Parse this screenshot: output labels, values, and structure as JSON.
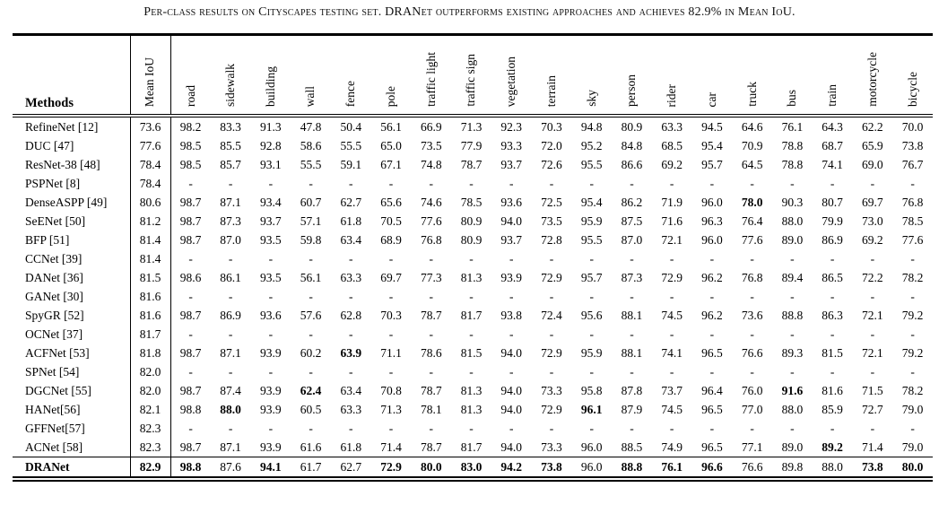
{
  "title": "Per-class results on Cityscapes testing set. DRANet outperforms existing approaches and achieves 82.9% in Mean IoU.",
  "colors": {
    "text": "#000000",
    "background": "#ffffff",
    "rule": "#000000"
  },
  "table": {
    "methods_header": "Methods",
    "columns": [
      "Mean IoU",
      "road",
      "sidewalk",
      "building",
      "wall",
      "fence",
      "pole",
      "traffic light",
      "traffic sign",
      "vegetation",
      "terrain",
      "sky",
      "person",
      "rider",
      "car",
      "truck",
      "bus",
      "train",
      "motorcycle",
      "bicycle"
    ],
    "rows": [
      {
        "method": "RefineNet [12]",
        "method_bold": false,
        "final": false,
        "bold": [],
        "values": [
          "73.6",
          "98.2",
          "83.3",
          "91.3",
          "47.8",
          "50.4",
          "56.1",
          "66.9",
          "71.3",
          "92.3",
          "70.3",
          "94.8",
          "80.9",
          "63.3",
          "94.5",
          "64.6",
          "76.1",
          "64.3",
          "62.2",
          "70.0"
        ]
      },
      {
        "method": "DUC [47]",
        "method_bold": false,
        "final": false,
        "bold": [],
        "values": [
          "77.6",
          "98.5",
          "85.5",
          "92.8",
          "58.6",
          "55.5",
          "65.0",
          "73.5",
          "77.9",
          "93.3",
          "72.0",
          "95.2",
          "84.8",
          "68.5",
          "95.4",
          "70.9",
          "78.8",
          "68.7",
          "65.9",
          "73.8"
        ]
      },
      {
        "method": "ResNet-38 [48]",
        "method_bold": false,
        "final": false,
        "bold": [],
        "values": [
          "78.4",
          "98.5",
          "85.7",
          "93.1",
          "55.5",
          "59.1",
          "67.1",
          "74.8",
          "78.7",
          "93.7",
          "72.6",
          "95.5",
          "86.6",
          "69.2",
          "95.7",
          "64.5",
          "78.8",
          "74.1",
          "69.0",
          "76.7"
        ]
      },
      {
        "method": "PSPNet [8]",
        "method_bold": false,
        "final": false,
        "bold": [],
        "values": [
          "78.4",
          "-",
          "-",
          "-",
          "-",
          "-",
          "-",
          "-",
          "-",
          "-",
          "-",
          "-",
          "-",
          "-",
          "-",
          "-",
          "-",
          "-",
          "-",
          "-"
        ]
      },
      {
        "method": "DenseASPP [49]",
        "method_bold": false,
        "final": false,
        "bold": [
          15
        ],
        "values": [
          "80.6",
          "98.7",
          "87.1",
          "93.4",
          "60.7",
          "62.7",
          "65.6",
          "74.6",
          "78.5",
          "93.6",
          "72.5",
          "95.4",
          "86.2",
          "71.9",
          "96.0",
          "78.0",
          "90.3",
          "80.7",
          "69.7",
          "76.8"
        ]
      },
      {
        "method": "SeENet [50]",
        "method_bold": false,
        "final": false,
        "bold": [],
        "values": [
          "81.2",
          "98.7",
          "87.3",
          "93.7",
          "57.1",
          "61.8",
          "70.5",
          "77.6",
          "80.9",
          "94.0",
          "73.5",
          "95.9",
          "87.5",
          "71.6",
          "96.3",
          "76.4",
          "88.0",
          "79.9",
          "73.0",
          "78.5"
        ]
      },
      {
        "method": "BFP [51]",
        "method_bold": false,
        "final": false,
        "bold": [],
        "values": [
          "81.4",
          "98.7",
          "87.0",
          "93.5",
          "59.8",
          "63.4",
          "68.9",
          "76.8",
          "80.9",
          "93.7",
          "72.8",
          "95.5",
          "87.0",
          "72.1",
          "96.0",
          "77.6",
          "89.0",
          "86.9",
          "69.2",
          "77.6"
        ]
      },
      {
        "method": "CCNet [39]",
        "method_bold": false,
        "final": false,
        "bold": [],
        "values": [
          "81.4",
          "-",
          "-",
          "-",
          "-",
          "-",
          "-",
          "-",
          "-",
          "-",
          "-",
          "-",
          "-",
          "-",
          "-",
          "-",
          "-",
          "-",
          "-",
          "-"
        ]
      },
      {
        "method": "DANet [36]",
        "method_bold": false,
        "final": false,
        "bold": [],
        "values": [
          "81.5",
          "98.6",
          "86.1",
          "93.5",
          "56.1",
          "63.3",
          "69.7",
          "77.3",
          "81.3",
          "93.9",
          "72.9",
          "95.7",
          "87.3",
          "72.9",
          "96.2",
          "76.8",
          "89.4",
          "86.5",
          "72.2",
          "78.2"
        ]
      },
      {
        "method": "GANet [30]",
        "method_bold": false,
        "final": false,
        "bold": [],
        "values": [
          "81.6",
          "-",
          "-",
          "-",
          "-",
          "-",
          "-",
          "-",
          "-",
          "-",
          "-",
          "-",
          "-",
          "-",
          "-",
          "-",
          "-",
          "-",
          "-",
          "-"
        ]
      },
      {
        "method": "SpyGR [52]",
        "method_bold": false,
        "final": false,
        "bold": [],
        "values": [
          "81.6",
          "98.7",
          "86.9",
          "93.6",
          "57.6",
          "62.8",
          "70.3",
          "78.7",
          "81.7",
          "93.8",
          "72.4",
          "95.6",
          "88.1",
          "74.5",
          "96.2",
          "73.6",
          "88.8",
          "86.3",
          "72.1",
          "79.2"
        ]
      },
      {
        "method": "OCNet [37]",
        "method_bold": false,
        "final": false,
        "bold": [],
        "values": [
          "81.7",
          "-",
          "-",
          "-",
          "-",
          "-",
          "-",
          "-",
          "-",
          "-",
          "-",
          "-",
          "-",
          "-",
          "-",
          "-",
          "-",
          "-",
          "-",
          "-"
        ]
      },
      {
        "method": "ACFNet [53]",
        "method_bold": false,
        "final": false,
        "bold": [
          5
        ],
        "values": [
          "81.8",
          "98.7",
          "87.1",
          "93.9",
          "60.2",
          "63.9",
          "71.1",
          "78.6",
          "81.5",
          "94.0",
          "72.9",
          "95.9",
          "88.1",
          "74.1",
          "96.5",
          "76.6",
          "89.3",
          "81.5",
          "72.1",
          "79.2"
        ]
      },
      {
        "method": "SPNet [54]",
        "method_bold": false,
        "final": false,
        "bold": [],
        "values": [
          "82.0",
          "-",
          "-",
          "-",
          "-",
          "-",
          "-",
          "-",
          "-",
          "-",
          "-",
          "-",
          "-",
          "-",
          "-",
          "-",
          "-",
          "-",
          "-",
          "-"
        ]
      },
      {
        "method": "DGCNet [55]",
        "method_bold": false,
        "final": false,
        "bold": [
          4,
          16
        ],
        "values": [
          "82.0",
          "98.7",
          "87.4",
          "93.9",
          "62.4",
          "63.4",
          "70.8",
          "78.7",
          "81.3",
          "94.0",
          "73.3",
          "95.8",
          "87.8",
          "73.7",
          "96.4",
          "76.0",
          "91.6",
          "81.6",
          "71.5",
          "78.2"
        ]
      },
      {
        "method": "HANet[56]",
        "method_bold": false,
        "final": false,
        "bold": [
          2,
          11
        ],
        "values": [
          "82.1",
          "98.8",
          "88.0",
          "93.9",
          "60.5",
          "63.3",
          "71.3",
          "78.1",
          "81.3",
          "94.0",
          "72.9",
          "96.1",
          "87.9",
          "74.5",
          "96.5",
          "77.0",
          "88.0",
          "85.9",
          "72.7",
          "79.0"
        ]
      },
      {
        "method": "GFFNet[57]",
        "method_bold": false,
        "final": false,
        "bold": [],
        "values": [
          "82.3",
          "-",
          "-",
          "-",
          "-",
          "-",
          "-",
          "-",
          "-",
          "-",
          "-",
          "-",
          "-",
          "-",
          "-",
          "-",
          "-",
          "-",
          "-",
          "-"
        ]
      },
      {
        "method": "ACNet [58]",
        "method_bold": false,
        "final": false,
        "bold": [
          17
        ],
        "values": [
          "82.3",
          "98.7",
          "87.1",
          "93.9",
          "61.6",
          "61.8",
          "71.4",
          "78.7",
          "81.7",
          "94.0",
          "73.3",
          "96.0",
          "88.5",
          "74.9",
          "96.5",
          "77.1",
          "89.0",
          "89.2",
          "71.4",
          "79.0"
        ]
      },
      {
        "method": "DRANet",
        "method_bold": true,
        "final": true,
        "bold": [
          0,
          1,
          3,
          6,
          7,
          8,
          9,
          10,
          12,
          13,
          14,
          18,
          19
        ],
        "values": [
          "82.9",
          "98.8",
          "87.6",
          "94.1",
          "61.7",
          "62.7",
          "72.9",
          "80.0",
          "83.0",
          "94.2",
          "73.8",
          "96.0",
          "88.8",
          "76.1",
          "96.6",
          "76.6",
          "89.8",
          "88.0",
          "73.8",
          "80.0"
        ]
      }
    ]
  }
}
